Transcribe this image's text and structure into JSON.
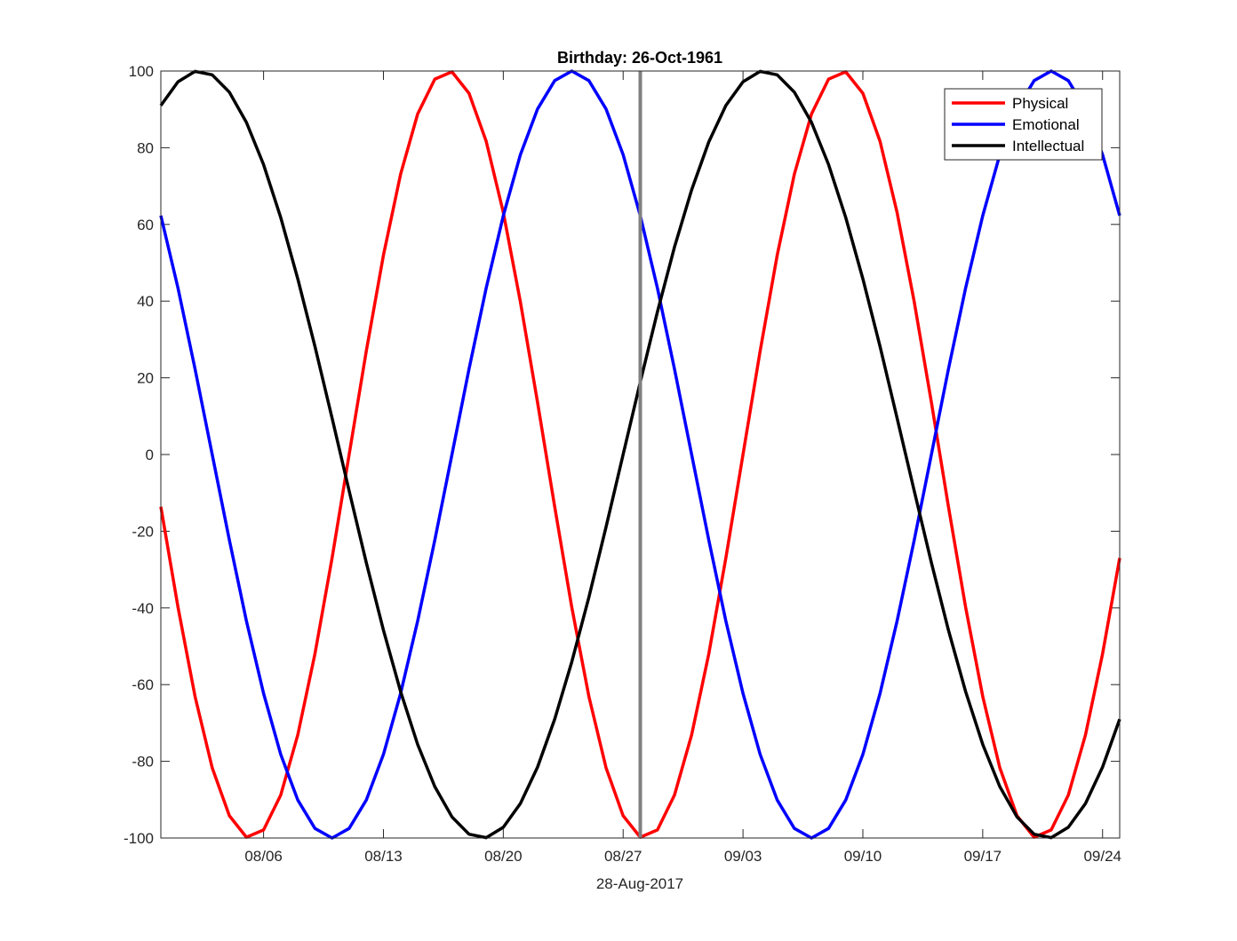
{
  "chart_data": {
    "type": "line",
    "title": "Birthday: 26-Oct-1961",
    "xlabel": "28-Aug-2017",
    "ylabel": "",
    "x_day_offsets_from_center": [
      -28,
      -27,
      -26,
      -25,
      -24,
      -23,
      -22,
      -21,
      -20,
      -19,
      -18,
      -17,
      -16,
      -15,
      -14,
      -13,
      -12,
      -11,
      -10,
      -9,
      -8,
      -7,
      -6,
      -5,
      -4,
      -3,
      -2,
      -1,
      0,
      1,
      2,
      3,
      4,
      5,
      6,
      7,
      8,
      9,
      10,
      11,
      12,
      13,
      14,
      15,
      16,
      17,
      18,
      19,
      20,
      21,
      22,
      23,
      24,
      25,
      26,
      27,
      28
    ],
    "xlim": [
      -28,
      28
    ],
    "ylim": [
      -100,
      100
    ],
    "yticks": [
      -100,
      -80,
      -60,
      -40,
      -20,
      0,
      20,
      40,
      60,
      80,
      100
    ],
    "xticks": [
      {
        "offset": -22,
        "label": "08/06"
      },
      {
        "offset": -15,
        "label": "08/13"
      },
      {
        "offset": -8,
        "label": "08/20"
      },
      {
        "offset": -1,
        "label": "08/27"
      },
      {
        "offset": 6,
        "label": "09/03"
      },
      {
        "offset": 13,
        "label": "09/10"
      },
      {
        "offset": 20,
        "label": "09/17"
      },
      {
        "offset": 27,
        "label": "09/24"
      }
    ],
    "reference_line": {
      "offset": 0,
      "color": "#808080"
    },
    "legend_position": "top-right",
    "grid": false,
    "series": [
      {
        "name": "Physical",
        "color": "#ff0000",
        "values": [
          -13.6,
          -39.8,
          -63.1,
          -81.7,
          -94.2,
          -99.8,
          -97.9,
          -88.8,
          -73.1,
          -52.0,
          -27.0,
          0,
          27.0,
          52.0,
          73.1,
          88.8,
          97.9,
          99.8,
          94.2,
          81.7,
          63.1,
          39.8,
          13.6,
          -13.6,
          -39.8,
          -63.1,
          -81.7,
          -94.2,
          -99.8,
          -97.9,
          -88.8,
          -73.1,
          -52.0,
          -27.0,
          0,
          27.0,
          52.0,
          73.1,
          88.8,
          97.9,
          99.8,
          94.2,
          81.7,
          63.1,
          39.8,
          13.6,
          -13.6,
          -39.8,
          -63.1,
          -81.7,
          -94.2,
          -99.8,
          -97.9,
          -88.8,
          -73.1,
          -52.0,
          -27.0
        ]
      },
      {
        "name": "Emotional",
        "color": "#0000ff",
        "values": [
          62.3,
          43.4,
          22.3,
          0,
          -22.3,
          -43.4,
          -62.3,
          -78.2,
          -90.1,
          -97.5,
          -100,
          -97.5,
          -90.1,
          -78.2,
          -62.3,
          -43.4,
          -22.3,
          0,
          22.3,
          43.4,
          62.3,
          78.2,
          90.1,
          97.5,
          100,
          97.5,
          90.1,
          78.2,
          62.3,
          43.4,
          22.3,
          0,
          -22.3,
          -43.4,
          -62.3,
          -78.2,
          -90.1,
          -97.5,
          -100,
          -97.5,
          -90.1,
          -78.2,
          -62.3,
          -43.4,
          -22.3,
          0,
          22.3,
          43.4,
          62.3,
          78.2,
          90.1,
          97.5,
          100,
          97.5,
          90.1,
          78.2,
          62.3
        ]
      },
      {
        "name": "Intellectual",
        "color": "#000000",
        "values": [
          91.0,
          97.2,
          99.9,
          99.0,
          94.5,
          86.6,
          75.6,
          61.8,
          45.8,
          28.2,
          9.5,
          -9.5,
          -28.2,
          -45.8,
          -61.8,
          -75.6,
          -86.6,
          -94.5,
          -99.0,
          -99.9,
          -97.2,
          -91.0,
          -81.5,
          -69.0,
          -54.1,
          -37.2,
          -18.9,
          0,
          18.9,
          37.2,
          54.1,
          69.0,
          81.5,
          91.0,
          97.2,
          99.9,
          99.0,
          94.5,
          86.6,
          75.6,
          61.8,
          45.8,
          28.2,
          9.5,
          -9.5,
          -28.2,
          -45.8,
          -61.8,
          -75.6,
          -86.6,
          -94.5,
          -99.0,
          -99.9,
          -97.2,
          -91.0,
          -81.5,
          -69.0
        ]
      }
    ]
  }
}
